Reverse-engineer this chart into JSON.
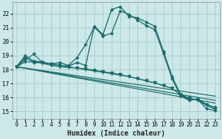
{
  "bg_color": "#cce8e8",
  "grid_color": "#aacccc",
  "line_color": "#1a6b6b",
  "xlabel": "Humidex (Indice chaleur)",
  "xlim": [
    -0.5,
    23.5
  ],
  "ylim": [
    14.5,
    22.8
  ],
  "yticks": [
    15,
    16,
    17,
    18,
    19,
    20,
    21,
    22
  ],
  "xticks": [
    0,
    1,
    2,
    3,
    4,
    5,
    6,
    7,
    8,
    9,
    10,
    11,
    12,
    13,
    14,
    15,
    16,
    17,
    18,
    19,
    20,
    21,
    22,
    23
  ],
  "series": [
    {
      "x": [
        0,
        1,
        2,
        3,
        4,
        5,
        6,
        7,
        8,
        9,
        10,
        11,
        12,
        13,
        14,
        15,
        16,
        17,
        18,
        19,
        20,
        21,
        22,
        23
      ],
      "y": [
        18.2,
        18.85,
        18.5,
        18.5,
        18.4,
        18.3,
        18.25,
        18.5,
        18.3,
        21.1,
        20.5,
        22.3,
        22.5,
        21.8,
        21.7,
        21.4,
        21.1,
        19.3,
        17.5,
        16.2,
        15.85,
        15.85,
        15.2,
        15.05
      ],
      "marker": "D",
      "markersize": 2.5,
      "lw": 1.0
    },
    {
      "x": [
        0,
        1,
        2,
        3,
        4,
        5,
        6,
        7,
        8,
        9,
        10,
        11,
        12,
        13,
        14,
        15,
        16,
        17,
        18,
        19,
        20,
        21,
        22,
        23
      ],
      "y": [
        18.2,
        19.0,
        18.6,
        18.55,
        18.4,
        18.5,
        18.3,
        18.85,
        19.8,
        21.05,
        20.4,
        20.6,
        22.2,
        21.95,
        21.55,
        21.15,
        20.85,
        19.15,
        17.35,
        16.1,
        15.8,
        15.9,
        15.5,
        15.3
      ],
      "marker": "D",
      "markersize": 2.5,
      "lw": 1.0
    },
    {
      "x": [
        0,
        23
      ],
      "y": [
        18.2,
        16.1
      ],
      "marker": null,
      "markersize": 0,
      "lw": 0.9
    },
    {
      "x": [
        0,
        23
      ],
      "y": [
        18.2,
        15.8
      ],
      "marker": null,
      "markersize": 0,
      "lw": 0.9
    },
    {
      "x": [
        0,
        23
      ],
      "y": [
        18.2,
        15.6
      ],
      "marker": null,
      "markersize": 0,
      "lw": 0.9
    },
    {
      "x": [
        0,
        1,
        2,
        3,
        4,
        5,
        6,
        7,
        8,
        9,
        10,
        11,
        12,
        13,
        14,
        15,
        16,
        17,
        18,
        19,
        20,
        21,
        22,
        23
      ],
      "y": [
        18.2,
        18.55,
        18.55,
        18.45,
        18.3,
        18.2,
        18.15,
        18.1,
        18.0,
        17.9,
        17.8,
        17.7,
        17.6,
        17.5,
        17.35,
        17.2,
        17.05,
        16.85,
        16.65,
        16.2,
        15.95,
        15.8,
        15.45,
        15.15
      ],
      "marker": "v",
      "markersize": 3.5,
      "lw": 0.9
    },
    {
      "x": [
        0,
        1,
        2,
        3,
        4,
        5,
        6,
        7,
        8,
        9,
        10,
        11,
        12,
        13,
        14,
        15,
        16,
        17,
        18,
        19,
        20,
        21,
        22,
        23
      ],
      "y": [
        18.2,
        18.7,
        19.1,
        18.5,
        18.4,
        18.3,
        18.2,
        18.1,
        18.05,
        17.95,
        17.85,
        17.75,
        17.65,
        17.5,
        17.35,
        17.2,
        17.05,
        16.85,
        16.65,
        16.2,
        15.95,
        15.8,
        15.45,
        15.15
      ],
      "marker": "v",
      "markersize": 3.5,
      "lw": 0.9
    }
  ]
}
